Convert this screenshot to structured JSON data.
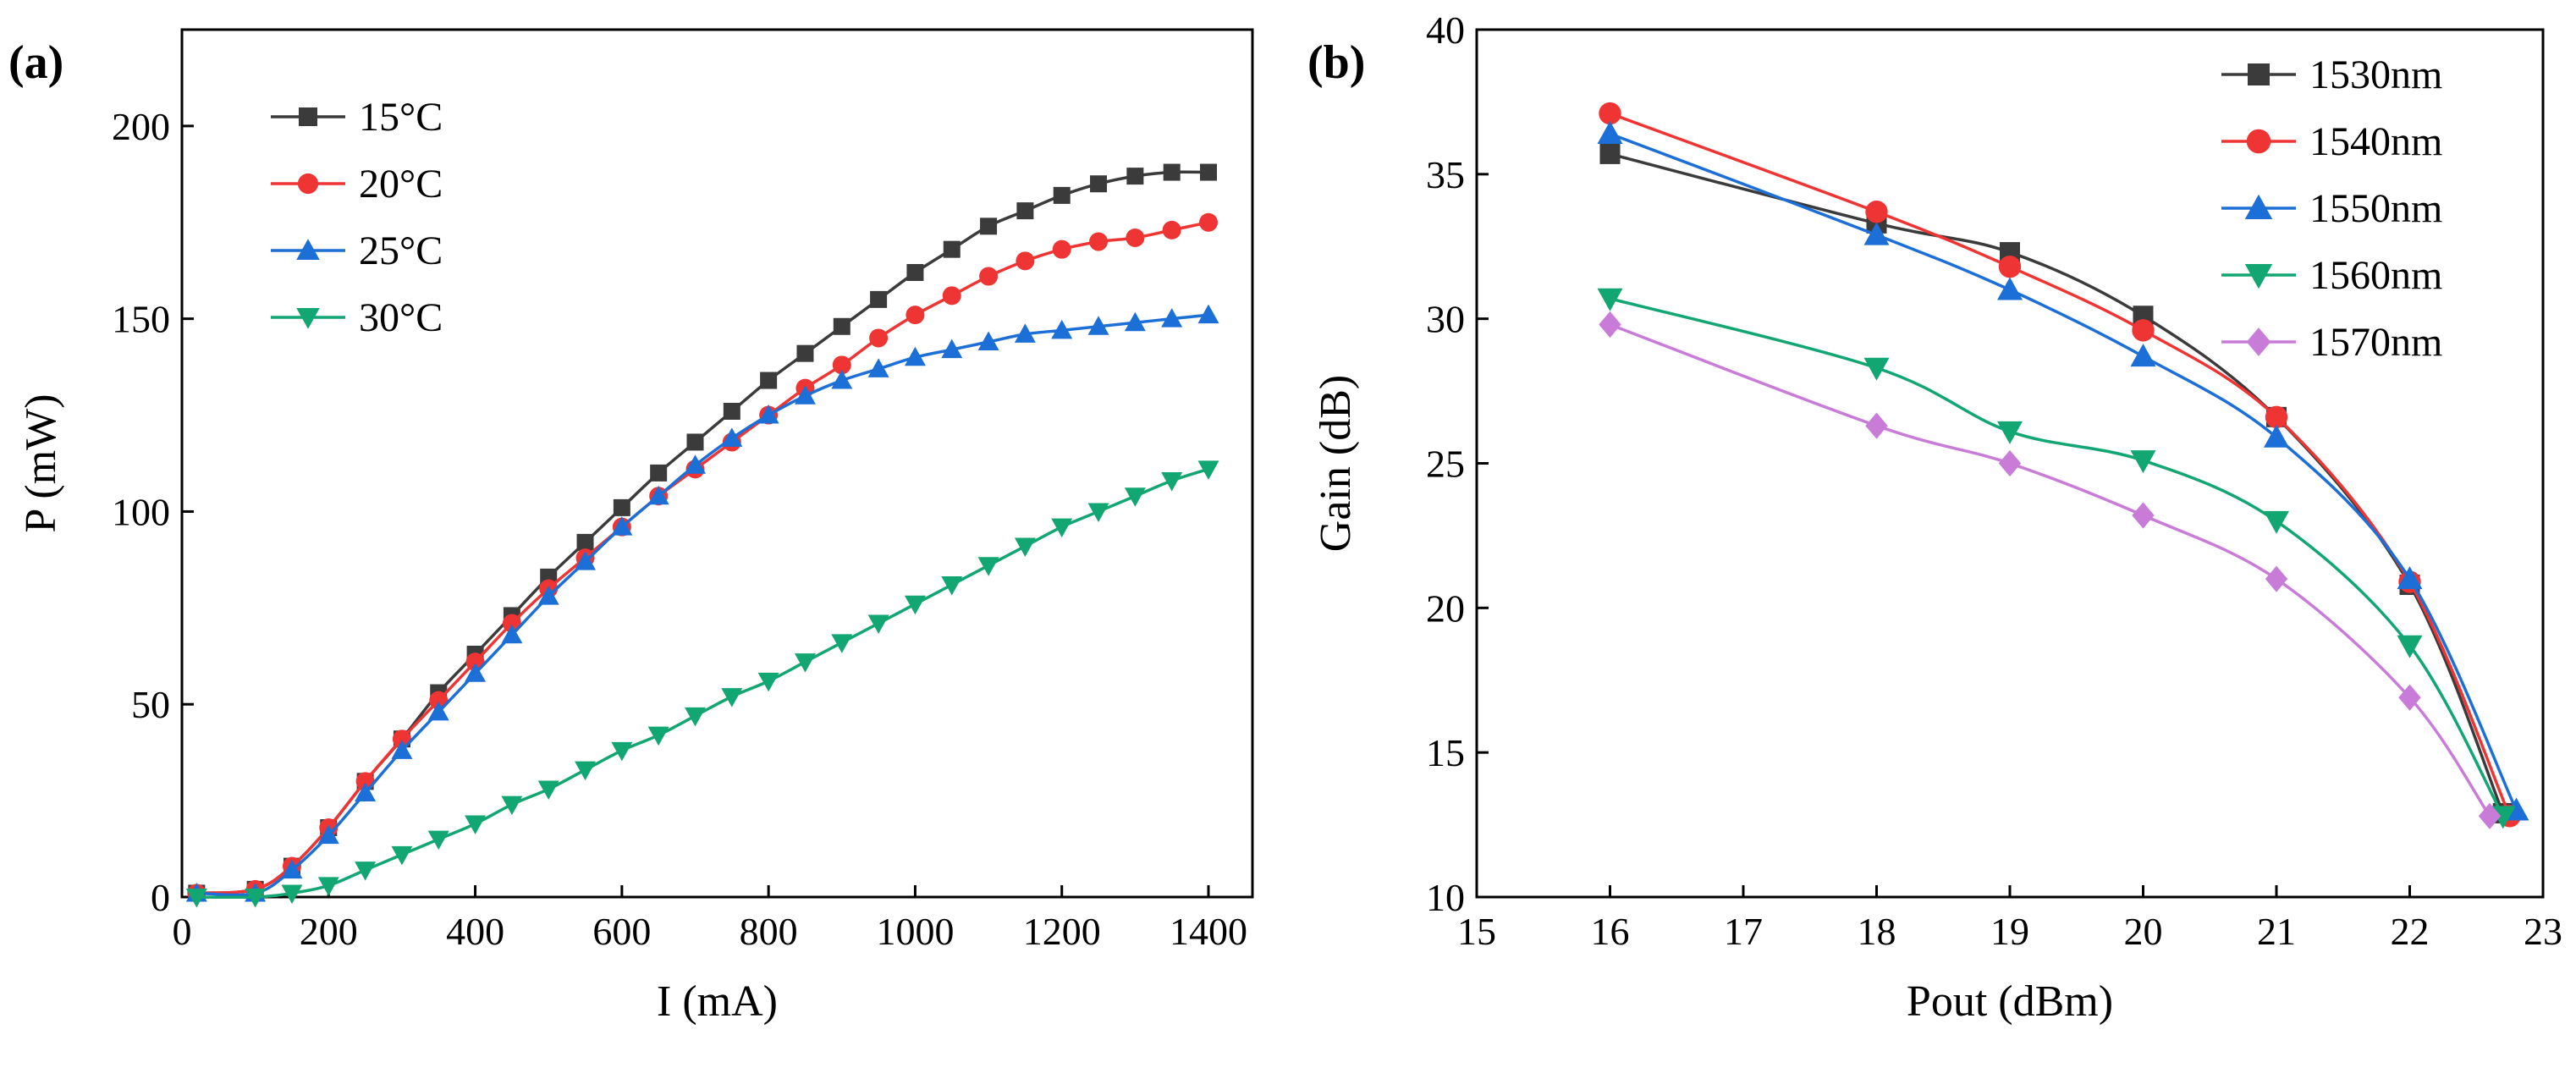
{
  "chart_data": [
    {
      "panel": "(a)",
      "type": "line",
      "xlabel": "I (mA)",
      "ylabel": "P (mW)",
      "xlim": [
        0,
        1460
      ],
      "ylim": [
        0,
        225
      ],
      "xticks": [
        0,
        200,
        400,
        600,
        800,
        1000,
        1200,
        1400
      ],
      "yticks": [
        0,
        50,
        100,
        150,
        200
      ],
      "legend_position": "top-left",
      "series": [
        {
          "name": "15°C",
          "color": "#3b3b3b",
          "marker": "square",
          "x": [
            20,
            100,
            150,
            200,
            250,
            300,
            350,
            400,
            450,
            500,
            550,
            600,
            650,
            700,
            750,
            800,
            850,
            900,
            950,
            1000,
            1050,
            1100,
            1150,
            1200,
            1250,
            1300,
            1350,
            1400
          ],
          "y": [
            1,
            2,
            8,
            18,
            30,
            41,
            53,
            63,
            73,
            83,
            92,
            101,
            110,
            118,
            126,
            134,
            141,
            148,
            155,
            162,
            168,
            174,
            178,
            182,
            185,
            187,
            188,
            188
          ]
        },
        {
          "name": "20°C",
          "color": "#ef3434",
          "marker": "circle",
          "x": [
            20,
            100,
            150,
            200,
            250,
            300,
            350,
            400,
            450,
            500,
            550,
            600,
            650,
            700,
            750,
            800,
            850,
            900,
            950,
            1000,
            1050,
            1100,
            1150,
            1200,
            1250,
            1300,
            1350,
            1400
          ],
          "y": [
            1,
            2,
            8,
            18,
            30,
            41,
            51,
            61,
            71,
            80,
            88,
            96,
            104,
            111,
            118,
            125,
            132,
            138,
            145,
            151,
            156,
            161,
            165,
            168,
            170,
            171,
            173,
            175
          ]
        },
        {
          "name": "25°C",
          "color": "#1c6fd6",
          "marker": "triangle-up",
          "x": [
            20,
            100,
            150,
            200,
            250,
            300,
            350,
            400,
            450,
            500,
            550,
            600,
            650,
            700,
            750,
            800,
            850,
            900,
            950,
            1000,
            1050,
            1100,
            1150,
            1200,
            1250,
            1300,
            1350,
            1400
          ],
          "y": [
            1,
            1,
            7,
            16,
            27,
            38,
            48,
            58,
            68,
            78,
            87,
            96,
            104,
            112,
            119,
            125,
            130,
            134,
            137,
            140,
            142,
            144,
            146,
            147,
            148,
            149,
            150,
            151
          ]
        },
        {
          "name": "30°C",
          "color": "#12a672",
          "marker": "triangle-down",
          "x": [
            20,
            100,
            150,
            200,
            250,
            300,
            350,
            400,
            450,
            500,
            550,
            600,
            650,
            700,
            750,
            800,
            850,
            900,
            950,
            1000,
            1050,
            1100,
            1150,
            1200,
            1250,
            1300,
            1350,
            1400
          ],
          "y": [
            0,
            0,
            1,
            3,
            7,
            11,
            15,
            19,
            24,
            28,
            33,
            38,
            42,
            47,
            52,
            56,
            61,
            66,
            71,
            76,
            81,
            86,
            91,
            96,
            100,
            104,
            108,
            111
          ]
        }
      ]
    },
    {
      "panel": "(b)",
      "type": "line",
      "xlabel": "Pout (dBm)",
      "ylabel": "Gain (dB)",
      "xlim": [
        15,
        23
      ],
      "ylim": [
        10,
        40
      ],
      "xticks": [
        15,
        16,
        17,
        18,
        19,
        20,
        21,
        22,
        23
      ],
      "yticks": [
        10,
        15,
        20,
        25,
        30,
        35,
        40
      ],
      "legend_position": "top-right",
      "series": [
        {
          "name": "1530nm",
          "color": "#3b3b3b",
          "marker": "square",
          "x": [
            16,
            18,
            19,
            20,
            21,
            22,
            22.7
          ],
          "y": [
            35.7,
            33.3,
            32.3,
            30.1,
            26.6,
            20.8,
            12.9
          ]
        },
        {
          "name": "1540nm",
          "color": "#ef3434",
          "marker": "circle",
          "x": [
            16,
            18,
            19,
            20,
            21,
            22,
            22.75
          ],
          "y": [
            37.1,
            33.7,
            31.8,
            29.6,
            26.6,
            20.9,
            12.8
          ]
        },
        {
          "name": "1550nm",
          "color": "#1c6fd6",
          "marker": "triangle-up",
          "x": [
            16,
            18,
            19,
            20,
            21,
            22,
            22.8
          ],
          "y": [
            36.4,
            32.9,
            31.0,
            28.7,
            25.9,
            21.0,
            13.0
          ]
        },
        {
          "name": "1560nm",
          "color": "#12a672",
          "marker": "triangle-down",
          "x": [
            16,
            18,
            19,
            20,
            21,
            22,
            22.7
          ],
          "y": [
            30.7,
            28.3,
            26.1,
            25.1,
            23.0,
            18.7,
            12.8
          ]
        },
        {
          "name": "1570nm",
          "color": "#c87cd8",
          "marker": "diamond",
          "x": [
            16,
            18,
            19,
            20,
            21,
            22,
            22.6
          ],
          "y": [
            29.8,
            26.3,
            25.0,
            23.2,
            21.0,
            16.9,
            12.8
          ]
        }
      ]
    }
  ]
}
